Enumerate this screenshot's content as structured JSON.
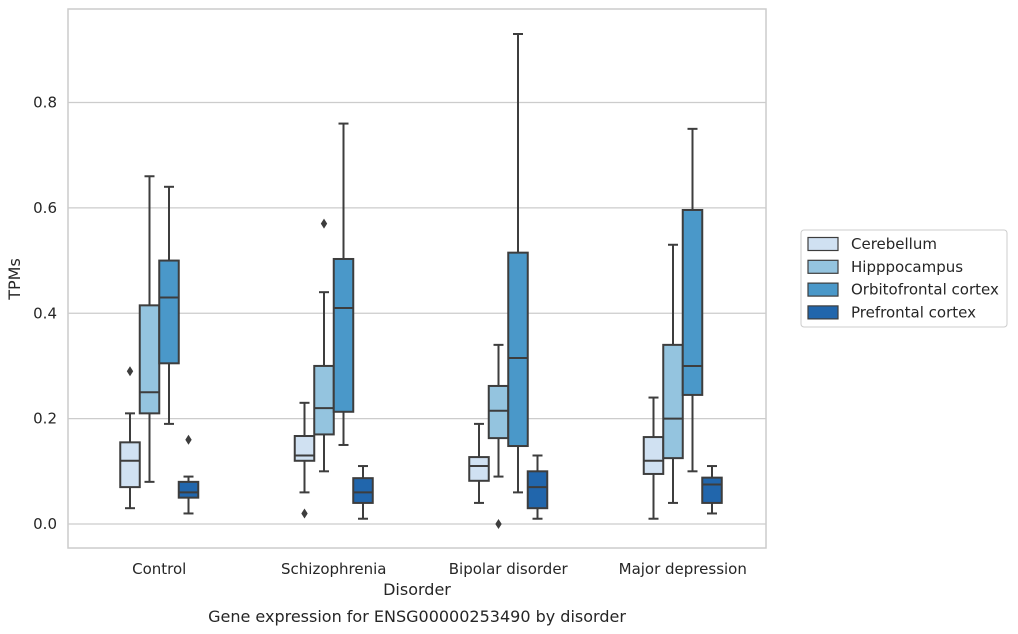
{
  "chart_data": {
    "type": "box",
    "title": "",
    "caption": "Gene expression for ENSG00000253490 by disorder",
    "xlabel": "Disorder",
    "ylabel": "TPMs",
    "ylim": [
      -0.045,
      0.98
    ],
    "yticks": [
      0.0,
      0.2,
      0.4,
      0.6,
      0.8
    ],
    "ytick_labels": [
      "0.0",
      "0.2",
      "0.4",
      "0.6",
      "0.8"
    ],
    "grid": "horizontal",
    "legend_position": "right",
    "categories": [
      "Control",
      "Schizophrenia",
      "Bipolar disorder",
      "Major depression"
    ],
    "series": [
      {
        "name": "Cerebellum",
        "color": "#d0e1f2",
        "boxes": [
          {
            "whisker_low": 0.03,
            "q1": 0.07,
            "median": 0.12,
            "q3": 0.155,
            "whisker_high": 0.21,
            "outliers": [
              0.29
            ]
          },
          {
            "whisker_low": 0.06,
            "q1": 0.12,
            "median": 0.13,
            "q3": 0.167,
            "whisker_high": 0.23,
            "outliers": [
              0.02
            ]
          },
          {
            "whisker_low": 0.04,
            "q1": 0.082,
            "median": 0.11,
            "q3": 0.127,
            "whisker_high": 0.19,
            "outliers": []
          },
          {
            "whisker_low": 0.01,
            "q1": 0.095,
            "median": 0.12,
            "q3": 0.165,
            "whisker_high": 0.24,
            "outliers": []
          }
        ]
      },
      {
        "name": "Hipppocampus",
        "color": "#94c4df",
        "boxes": [
          {
            "whisker_low": 0.08,
            "q1": 0.21,
            "median": 0.25,
            "q3": 0.415,
            "whisker_high": 0.66,
            "outliers": []
          },
          {
            "whisker_low": 0.1,
            "q1": 0.17,
            "median": 0.22,
            "q3": 0.3,
            "whisker_high": 0.44,
            "outliers": [
              0.57
            ]
          },
          {
            "whisker_low": 0.09,
            "q1": 0.163,
            "median": 0.215,
            "q3": 0.262,
            "whisker_high": 0.34,
            "outliers": [
              0.0
            ]
          },
          {
            "whisker_low": 0.04,
            "q1": 0.125,
            "median": 0.2,
            "q3": 0.34,
            "whisker_high": 0.53,
            "outliers": []
          }
        ]
      },
      {
        "name": "Orbitofrontal cortex",
        "color": "#4a98c9",
        "boxes": [
          {
            "whisker_low": 0.19,
            "q1": 0.305,
            "median": 0.43,
            "q3": 0.5,
            "whisker_high": 0.64,
            "outliers": []
          },
          {
            "whisker_low": 0.15,
            "q1": 0.213,
            "median": 0.41,
            "q3": 0.503,
            "whisker_high": 0.76,
            "outliers": []
          },
          {
            "whisker_low": 0.06,
            "q1": 0.148,
            "median": 0.315,
            "q3": 0.515,
            "whisker_high": 0.93,
            "outliers": []
          },
          {
            "whisker_low": 0.1,
            "q1": 0.245,
            "median": 0.3,
            "q3": 0.596,
            "whisker_high": 0.75,
            "outliers": []
          }
        ]
      },
      {
        "name": "Prefrontal cortex",
        "color": "#2166ac",
        "boxes": [
          {
            "whisker_low": 0.02,
            "q1": 0.05,
            "median": 0.06,
            "q3": 0.08,
            "whisker_high": 0.09,
            "outliers": [
              0.16
            ]
          },
          {
            "whisker_low": 0.01,
            "q1": 0.04,
            "median": 0.06,
            "q3": 0.087,
            "whisker_high": 0.11,
            "outliers": []
          },
          {
            "whisker_low": 0.01,
            "q1": 0.03,
            "median": 0.07,
            "q3": 0.1,
            "whisker_high": 0.13,
            "outliers": []
          },
          {
            "whisker_low": 0.02,
            "q1": 0.04,
            "median": 0.075,
            "q3": 0.088,
            "whisker_high": 0.11,
            "outliers": []
          }
        ]
      }
    ]
  }
}
